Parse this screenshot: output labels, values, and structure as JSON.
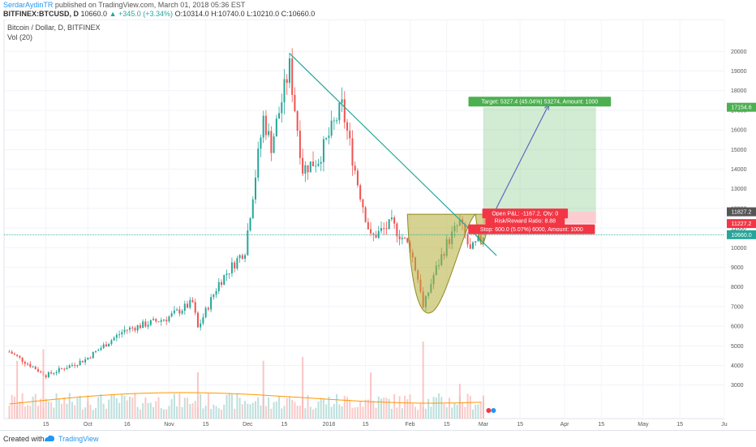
{
  "header": {
    "author": "SerdarAydinTR",
    "published": "published on TradingView.com, March 01, 2018 05:36 EST",
    "symbol": "BITFINEX:BTCUSD, D",
    "last": "10660.0",
    "change": "▲ +345.0 (+3.34%)",
    "ohlc": "O:10314.0 H:10740.0 L:10210.0 C:10660.0"
  },
  "legend": {
    "title": "Bitcoin / Dollar, D, BITFINEX",
    "volume": "Vol (20)"
  },
  "footer": {
    "created_with": "Created with",
    "brand": "TradingView"
  },
  "chart_data": {
    "type": "candlestick",
    "ylim": [
      2200,
      20800
    ],
    "y_ticks": [
      3000,
      4000,
      5000,
      6000,
      7000,
      8000,
      9000,
      10000,
      11000,
      12000,
      13000,
      14000,
      15000,
      16000,
      17000,
      18000,
      19000,
      20000
    ],
    "x_tick_labels": [
      "15",
      "Oct",
      "16",
      "Nov",
      "15",
      "Dec",
      "15",
      "2018",
      "15",
      "Feb",
      "15",
      "Mar",
      "15",
      "Apr",
      "15",
      "May",
      "15",
      "Ju"
    ],
    "close_series": {
      "dates": [
        "2017-09-01",
        "2017-09-15",
        "2017-09-30",
        "2017-10-15",
        "2017-10-31",
        "2017-11-10",
        "2017-11-12",
        "2017-11-20",
        "2017-11-30",
        "2017-12-07",
        "2017-12-10",
        "2017-12-17",
        "2017-12-22",
        "2017-12-28",
        "2018-01-06",
        "2018-01-12",
        "2018-01-17",
        "2018-01-25",
        "2018-02-01",
        "2018-02-05",
        "2018-02-06",
        "2018-02-10",
        "2018-02-15",
        "2018-02-20",
        "2018-02-24",
        "2018-03-01"
      ],
      "values": [
        4700,
        3500,
        4300,
        5800,
        6400,
        7200,
        5900,
        8200,
        9900,
        16600,
        15200,
        19200,
        14000,
        14500,
        17200,
        13300,
        10500,
        11200,
        10000,
        7900,
        6900,
        8600,
        10200,
        11300,
        9800,
        10660
      ]
    },
    "volume": {
      "description_free": false,
      "dates": [
        "2017-09-04",
        "2017-09-14",
        "2017-10-01",
        "2017-11-12",
        "2017-12-07",
        "2017-12-22",
        "2018-01-17",
        "2018-02-06",
        "2018-02-20",
        "2018-03-01"
      ],
      "values": [
        0.75,
        0.9,
        0.3,
        0.6,
        0.75,
        0.8,
        0.6,
        1.0,
        0.45,
        0.3
      ]
    },
    "price_tags": [
      {
        "value": 17154.6,
        "color": "#4caf50"
      },
      {
        "value": 11827.2,
        "color": "#555555"
      },
      {
        "value": 11227.2,
        "color": "#f23645"
      },
      {
        "value": 10660.0,
        "color": "#26a69a"
      }
    ],
    "annotations": {
      "target": "Target: 5327.4 (45.04%) 53274, Amount: 1000",
      "open_pl": "Open P&L: -1167.2, Qty: 0",
      "risk_reward": "Risk/Reward Ratio: 8.88",
      "stop": "Stop: 600.0 (5.07%) 6000, Amount: 1000"
    },
    "position": {
      "entry": 11827.2,
      "target": 17154.6,
      "stop": 11227.2,
      "start_date": "2018-03-01",
      "end_date": "2018-04-13"
    },
    "trendline": {
      "start": {
        "date": "2017-12-17",
        "value": 19900
      },
      "end": {
        "date": "2018-03-06",
        "value": 9600
      }
    },
    "cup": {
      "rim": 11700,
      "bottom": 6700,
      "left_date": "2018-01-31",
      "right_date": "2018-02-26",
      "bottom_date": "2018-02-09"
    },
    "projection_arrow": {
      "start": {
        "date": "2018-03-01",
        "value": 10700
      },
      "end": {
        "date": "2018-03-26",
        "value": 17300
      }
    },
    "last_price_line": 10660.0,
    "colors": {
      "up": "#26a69a",
      "down": "#ef5350",
      "trend": "#26a69a",
      "cup": "#b5ad38",
      "profit_zone": "#4caf50",
      "loss_zone": "#f23645",
      "arrow": "#5c6bc0"
    }
  }
}
